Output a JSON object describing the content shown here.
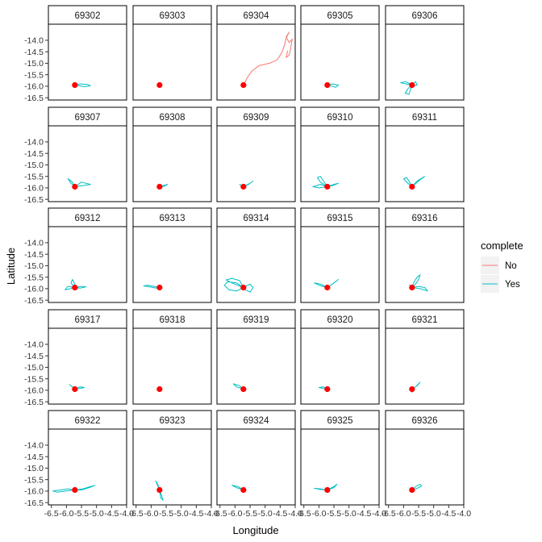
{
  "chart_data": {
    "type": "line",
    "layout": "facet-grid",
    "xlabel": "Longitude",
    "ylabel": "Latitude",
    "xlim": [
      -6.6,
      -4.0
    ],
    "ylim": [
      -16.6,
      -13.3
    ],
    "x_ticks": [
      -6.5,
      -6.0,
      -5.5,
      -5.0,
      -4.5,
      -4.0
    ],
    "x_tick_labels": [
      "-6.5",
      "-6.0",
      "-5.5",
      "-5.0",
      "-4.5",
      "-4.0"
    ],
    "y_ticks": [
      -14.0,
      -14.5,
      -15.0,
      -15.5,
      -16.0,
      -16.5
    ],
    "y_tick_labels": [
      "-14.0",
      "-14.5",
      "-15.0",
      "-15.5",
      "-16.0",
      "-16.5"
    ],
    "legend": {
      "title": "complete",
      "position": "right",
      "entries": [
        {
          "label": "No",
          "color": "#F8766D"
        },
        {
          "label": "Yes",
          "color": "#00BFC4"
        }
      ]
    },
    "origin_point": {
      "x": -5.72,
      "y": -15.95,
      "color": "#FF0000"
    },
    "panels": [
      {
        "id": "69302",
        "complete": "Yes",
        "track": [
          [
            -5.72,
            -15.95
          ],
          [
            -5.55,
            -15.9
          ],
          [
            -5.3,
            -15.92
          ],
          [
            -5.2,
            -15.98
          ],
          [
            -5.4,
            -16.02
          ],
          [
            -5.6,
            -15.97
          ],
          [
            -5.72,
            -15.95
          ]
        ]
      },
      {
        "id": "69303",
        "complete": "Yes",
        "track": []
      },
      {
        "id": "69304",
        "complete": "No",
        "track": [
          [
            -5.72,
            -15.95
          ],
          [
            -5.6,
            -15.65
          ],
          [
            -5.45,
            -15.35
          ],
          [
            -5.2,
            -15.1
          ],
          [
            -4.85,
            -15.0
          ],
          [
            -4.6,
            -14.85
          ],
          [
            -4.45,
            -14.55
          ],
          [
            -4.35,
            -14.2
          ],
          [
            -4.3,
            -13.9
          ],
          [
            -4.2,
            -13.65
          ],
          [
            -4.3,
            -13.85
          ],
          [
            -4.2,
            -14.1
          ],
          [
            -4.1,
            -13.95
          ],
          [
            -4.15,
            -14.35
          ],
          [
            -4.2,
            -14.65
          ],
          [
            -4.3,
            -14.75
          ],
          [
            -4.25,
            -14.45
          ]
        ]
      },
      {
        "id": "69305",
        "complete": "Yes",
        "track": [
          [
            -5.72,
            -15.95
          ],
          [
            -5.55,
            -15.9
          ],
          [
            -5.35,
            -15.95
          ],
          [
            -5.45,
            -16.05
          ],
          [
            -5.6,
            -15.98
          ],
          [
            -5.72,
            -15.95
          ]
        ]
      },
      {
        "id": "69306",
        "complete": "Yes",
        "track": [
          [
            -5.72,
            -15.95
          ],
          [
            -5.9,
            -15.9
          ],
          [
            -6.1,
            -15.85
          ],
          [
            -5.95,
            -15.8
          ],
          [
            -5.8,
            -15.88
          ],
          [
            -5.72,
            -15.95
          ],
          [
            -5.85,
            -16.1
          ],
          [
            -5.95,
            -16.3
          ],
          [
            -5.82,
            -16.35
          ],
          [
            -5.72,
            -15.95
          ],
          [
            -5.6,
            -15.8
          ],
          [
            -5.55,
            -15.95
          ],
          [
            -5.72,
            -15.95
          ]
        ]
      },
      {
        "id": "69307",
        "complete": "Yes",
        "track": [
          [
            -5.72,
            -15.95
          ],
          [
            -5.85,
            -15.8
          ],
          [
            -5.95,
            -15.6
          ],
          [
            -5.8,
            -15.75
          ],
          [
            -5.72,
            -15.95
          ],
          [
            -5.5,
            -15.75
          ],
          [
            -5.2,
            -15.85
          ],
          [
            -5.45,
            -15.9
          ],
          [
            -5.72,
            -15.95
          ]
        ]
      },
      {
        "id": "69308",
        "complete": "Yes",
        "track": [
          [
            -5.72,
            -15.95
          ],
          [
            -5.6,
            -15.9
          ],
          [
            -5.45,
            -15.85
          ],
          [
            -5.55,
            -15.92
          ],
          [
            -5.72,
            -15.95
          ],
          [
            -5.75,
            -15.85
          ]
        ]
      },
      {
        "id": "69309",
        "complete": "Yes",
        "track": [
          [
            -5.72,
            -15.95
          ],
          [
            -5.85,
            -15.85
          ],
          [
            -5.78,
            -15.9
          ],
          [
            -5.72,
            -15.95
          ],
          [
            -5.55,
            -15.85
          ],
          [
            -5.4,
            -15.7
          ],
          [
            -5.5,
            -15.8
          ],
          [
            -5.72,
            -15.95
          ]
        ]
      },
      {
        "id": "69310",
        "complete": "Yes",
        "track": [
          [
            -5.72,
            -15.95
          ],
          [
            -5.95,
            -15.75
          ],
          [
            -6.05,
            -15.55
          ],
          [
            -5.95,
            -15.5
          ],
          [
            -5.85,
            -15.7
          ],
          [
            -5.72,
            -15.95
          ],
          [
            -6.0,
            -16.0
          ],
          [
            -6.2,
            -15.95
          ],
          [
            -5.95,
            -15.85
          ],
          [
            -5.72,
            -15.95
          ],
          [
            -5.5,
            -15.85
          ],
          [
            -5.35,
            -15.8
          ],
          [
            -5.55,
            -15.9
          ],
          [
            -5.72,
            -15.95
          ]
        ]
      },
      {
        "id": "69311",
        "complete": "Yes",
        "track": [
          [
            -5.72,
            -15.95
          ],
          [
            -5.9,
            -15.75
          ],
          [
            -6.0,
            -15.6
          ],
          [
            -5.9,
            -15.55
          ],
          [
            -5.8,
            -15.75
          ],
          [
            -5.72,
            -15.95
          ],
          [
            -5.55,
            -15.7
          ],
          [
            -5.3,
            -15.5
          ],
          [
            -5.45,
            -15.65
          ],
          [
            -5.72,
            -15.95
          ]
        ]
      },
      {
        "id": "69312",
        "complete": "Yes",
        "track": [
          [
            -5.72,
            -15.95
          ],
          [
            -5.85,
            -15.75
          ],
          [
            -5.8,
            -15.6
          ],
          [
            -5.72,
            -15.8
          ],
          [
            -5.72,
            -15.95
          ],
          [
            -5.95,
            -15.9
          ],
          [
            -6.05,
            -16.05
          ],
          [
            -5.85,
            -16.0
          ],
          [
            -5.72,
            -15.95
          ],
          [
            -5.5,
            -15.9
          ],
          [
            -5.35,
            -15.92
          ],
          [
            -5.55,
            -15.98
          ],
          [
            -5.72,
            -15.95
          ]
        ]
      },
      {
        "id": "69313",
        "complete": "Yes",
        "track": [
          [
            -5.72,
            -15.95
          ],
          [
            -5.9,
            -15.9
          ],
          [
            -6.1,
            -15.85
          ],
          [
            -6.25,
            -15.88
          ],
          [
            -6.05,
            -15.92
          ],
          [
            -5.85,
            -15.97
          ],
          [
            -5.72,
            -15.95
          ]
        ]
      },
      {
        "id": "69314",
        "complete": "Yes",
        "track": [
          [
            -5.72,
            -15.95
          ],
          [
            -5.95,
            -15.75
          ],
          [
            -6.25,
            -15.7
          ],
          [
            -6.35,
            -15.85
          ],
          [
            -6.2,
            -16.05
          ],
          [
            -5.95,
            -16.1
          ],
          [
            -5.72,
            -15.95
          ],
          [
            -5.85,
            -15.65
          ],
          [
            -6.1,
            -15.55
          ],
          [
            -6.3,
            -15.62
          ],
          [
            -6.1,
            -15.75
          ],
          [
            -5.72,
            -15.95
          ],
          [
            -5.5,
            -15.8
          ],
          [
            -5.4,
            -15.95
          ],
          [
            -5.5,
            -16.15
          ],
          [
            -5.65,
            -16.05
          ],
          [
            -5.72,
            -15.95
          ]
        ]
      },
      {
        "id": "69315",
        "complete": "Yes",
        "track": [
          [
            -5.72,
            -15.95
          ],
          [
            -5.95,
            -15.8
          ],
          [
            -6.15,
            -15.75
          ],
          [
            -6.0,
            -15.85
          ],
          [
            -5.72,
            -15.95
          ],
          [
            -5.55,
            -15.8
          ],
          [
            -5.35,
            -15.6
          ],
          [
            -5.5,
            -15.75
          ],
          [
            -5.72,
            -15.95
          ]
        ]
      },
      {
        "id": "69316",
        "complete": "Yes",
        "track": [
          [
            -5.72,
            -15.95
          ],
          [
            -5.65,
            -15.7
          ],
          [
            -5.55,
            -15.5
          ],
          [
            -5.45,
            -15.4
          ],
          [
            -5.5,
            -15.6
          ],
          [
            -5.6,
            -15.8
          ],
          [
            -5.72,
            -15.95
          ],
          [
            -5.45,
            -16.0
          ],
          [
            -5.2,
            -16.1
          ],
          [
            -5.3,
            -15.95
          ],
          [
            -5.5,
            -15.9
          ],
          [
            -5.72,
            -15.95
          ],
          [
            -5.8,
            -15.85
          ],
          [
            -5.72,
            -15.95
          ]
        ]
      },
      {
        "id": "69317",
        "complete": "Yes",
        "track": [
          [
            -5.72,
            -15.95
          ],
          [
            -5.85,
            -15.8
          ],
          [
            -5.9,
            -15.75
          ],
          [
            -5.8,
            -15.85
          ],
          [
            -5.72,
            -15.95
          ],
          [
            -5.55,
            -15.85
          ],
          [
            -5.4,
            -15.88
          ],
          [
            -5.55,
            -15.92
          ],
          [
            -5.72,
            -15.95
          ]
        ]
      },
      {
        "id": "69318",
        "complete": "Yes",
        "track": []
      },
      {
        "id": "69319",
        "complete": "Yes",
        "track": [
          [
            -5.72,
            -15.95
          ],
          [
            -5.85,
            -15.8
          ],
          [
            -6.05,
            -15.72
          ],
          [
            -5.95,
            -15.85
          ],
          [
            -5.72,
            -15.95
          ]
        ]
      },
      {
        "id": "69320",
        "complete": "Yes",
        "track": [
          [
            -5.72,
            -15.95
          ],
          [
            -5.85,
            -15.85
          ],
          [
            -6.0,
            -15.88
          ],
          [
            -5.85,
            -15.92
          ],
          [
            -5.72,
            -15.95
          ],
          [
            -5.72,
            -16.05
          ]
        ]
      },
      {
        "id": "69321",
        "complete": "Yes",
        "track": [
          [
            -5.72,
            -15.95
          ],
          [
            -5.6,
            -15.85
          ],
          [
            -5.45,
            -15.65
          ],
          [
            -5.55,
            -15.8
          ],
          [
            -5.72,
            -15.95
          ],
          [
            -5.72,
            -16.1
          ]
        ]
      },
      {
        "id": "69322",
        "complete": "Yes",
        "track": [
          [
            -5.72,
            -15.95
          ],
          [
            -5.95,
            -15.9
          ],
          [
            -6.2,
            -15.95
          ],
          [
            -6.45,
            -16.0
          ],
          [
            -6.3,
            -16.05
          ],
          [
            -6.05,
            -16.0
          ],
          [
            -5.72,
            -15.95
          ],
          [
            -5.45,
            -15.9
          ],
          [
            -5.2,
            -15.8
          ],
          [
            -5.05,
            -15.75
          ],
          [
            -5.25,
            -15.85
          ],
          [
            -5.5,
            -15.95
          ],
          [
            -5.72,
            -15.95
          ]
        ]
      },
      {
        "id": "69323",
        "complete": "Yes",
        "track": [
          [
            -5.72,
            -15.95
          ],
          [
            -5.8,
            -15.7
          ],
          [
            -5.85,
            -15.55
          ],
          [
            -5.78,
            -15.7
          ],
          [
            -5.72,
            -15.95
          ],
          [
            -5.65,
            -16.2
          ],
          [
            -5.6,
            -16.4
          ],
          [
            -5.68,
            -16.3
          ],
          [
            -5.72,
            -15.95
          ]
        ]
      },
      {
        "id": "69324",
        "complete": "Yes",
        "track": [
          [
            -5.72,
            -15.95
          ],
          [
            -5.9,
            -15.8
          ],
          [
            -6.1,
            -15.75
          ],
          [
            -5.95,
            -15.85
          ],
          [
            -5.72,
            -15.95
          ]
        ]
      },
      {
        "id": "69325",
        "complete": "Yes",
        "track": [
          [
            -5.72,
            -15.95
          ],
          [
            -5.95,
            -15.9
          ],
          [
            -6.15,
            -15.88
          ],
          [
            -5.95,
            -15.93
          ],
          [
            -5.72,
            -15.95
          ],
          [
            -5.5,
            -15.8
          ],
          [
            -5.4,
            -15.7
          ],
          [
            -5.5,
            -15.85
          ],
          [
            -5.72,
            -15.95
          ]
        ]
      },
      {
        "id": "69326",
        "complete": "Yes",
        "track": [
          [
            -5.72,
            -15.95
          ],
          [
            -5.6,
            -15.8
          ],
          [
            -5.45,
            -15.7
          ],
          [
            -5.4,
            -15.78
          ],
          [
            -5.55,
            -15.88
          ],
          [
            -5.72,
            -15.95
          ]
        ]
      }
    ]
  }
}
